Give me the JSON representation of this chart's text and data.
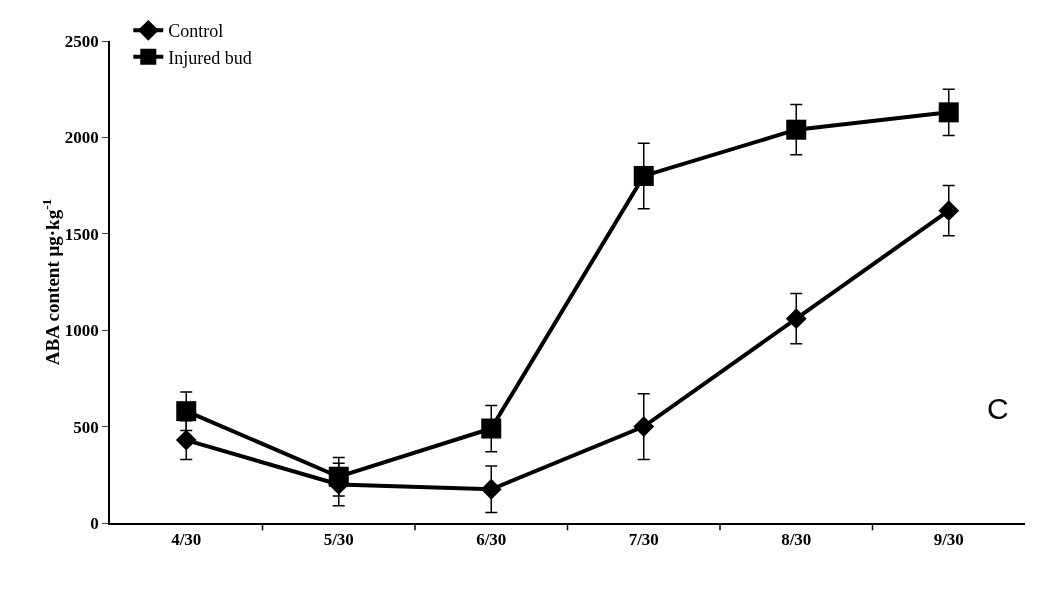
{
  "chart_data": {
    "type": "line",
    "ylabel": "ABA content μg·kg$^{-1}$",
    "categories": [
      "4/30",
      "5/30",
      "6/30",
      "7/30",
      "8/30",
      "9/30"
    ],
    "series": [
      {
        "name": "Control",
        "color": "#000000",
        "marker": "diamond",
        "values": [
          430,
          200,
          175,
          500,
          1060,
          1620
        ],
        "errors": [
          100,
          110,
          120,
          170,
          130,
          130
        ]
      },
      {
        "name": "Injured bud",
        "color": "#000000",
        "marker": "square",
        "values": [
          580,
          240,
          490,
          1800,
          2040,
          2130
        ],
        "errors": [
          100,
          100,
          120,
          170,
          130,
          120
        ]
      }
    ],
    "ylim": [
      0,
      2500
    ],
    "yticks": [
      0,
      500,
      1000,
      1500,
      2000,
      2500
    ],
    "grid": false,
    "legend": "top left",
    "line_style": "solid",
    "annotations": [
      "C"
    ]
  }
}
